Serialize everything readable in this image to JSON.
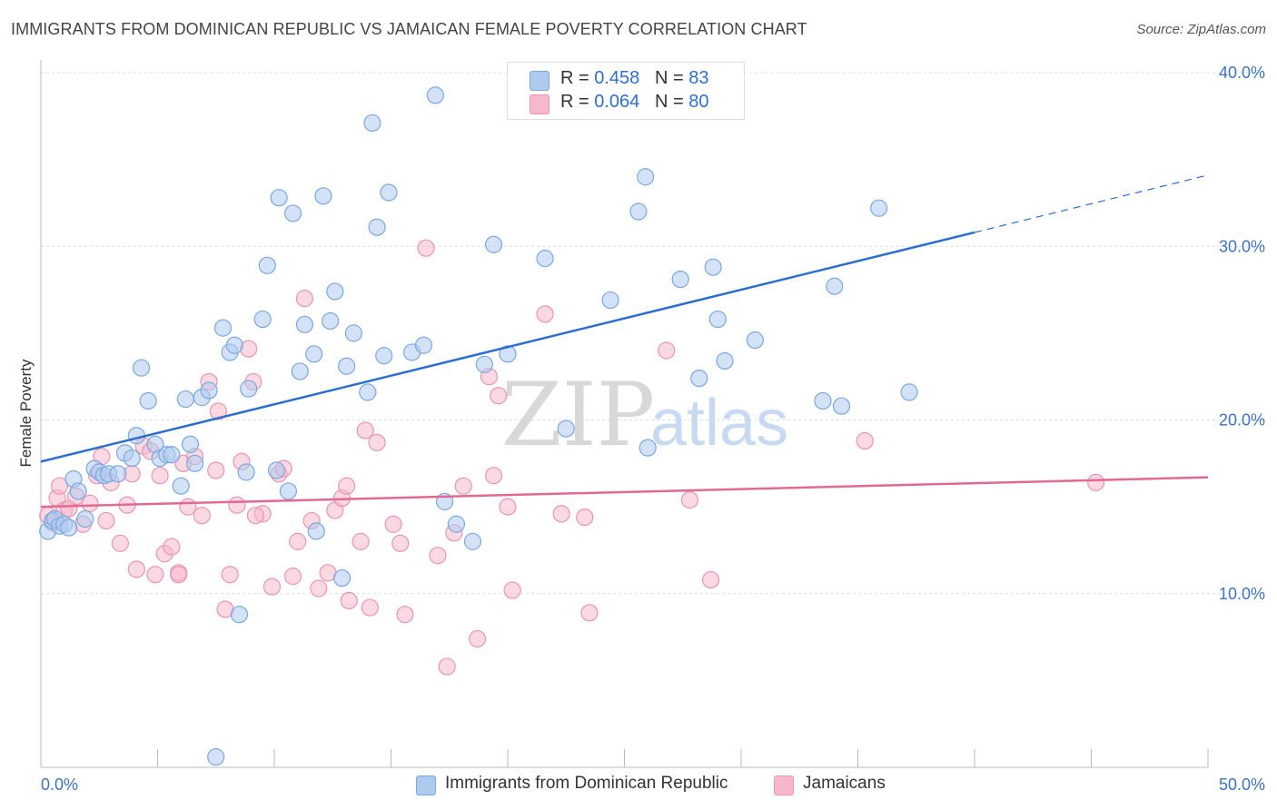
{
  "header": {
    "title": "IMMIGRANTS FROM DOMINICAN REPUBLIC VS JAMAICAN FEMALE POVERTY CORRELATION CHART",
    "source": "Source: ZipAtlas.com"
  },
  "watermark": {
    "zip": "ZIP",
    "atlas": "atlas"
  },
  "stats_legend": {
    "rows": [
      {
        "r_label": "R = ",
        "r_value": "0.458",
        "n_label": "N = ",
        "n_value": "83",
        "color": "#aecbef"
      },
      {
        "r_label": "R = ",
        "r_value": "0.064",
        "n_label": "N = ",
        "n_value": "80",
        "color": "#f6b9cc"
      }
    ]
  },
  "bottom_legend": [
    {
      "label": "Immigrants from Dominican Republic",
      "color": "#aecbef"
    },
    {
      "label": "Jamaicans",
      "color": "#f6b9cc"
    }
  ],
  "colors": {
    "blue_fill": "#aecbef",
    "blue_stroke": "#7aa8e0",
    "blue_line": "#2a6fd0",
    "pink_fill": "#f6b9cc",
    "pink_stroke": "#ea94b1",
    "pink_line": "#e46894",
    "grid": "#dddddd",
    "axis_text": "#3d72c4"
  },
  "chart_data": {
    "type": "scatter",
    "title": "IMMIGRANTS FROM DOMINICAN REPUBLIC VS JAMAICAN FEMALE POVERTY CORRELATION CHART",
    "xlabel": "",
    "ylabel": "Female Poverty",
    "xlim": [
      0,
      50
    ],
    "ylim": [
      0,
      40
    ],
    "x_tick_labels": [
      "0.0%",
      "50.0%"
    ],
    "y_ticks": [
      10,
      20,
      30,
      40
    ],
    "y_tick_labels": [
      "10.0%",
      "20.0%",
      "30.0%",
      "40.0%"
    ],
    "grid": true,
    "legend_position": "top-center",
    "series": [
      {
        "name": "Immigrants from Dominican Republic",
        "r": 0.458,
        "n": 83,
        "trend": {
          "x0": 0,
          "y0": 17.6,
          "x1": 40,
          "y1": 30.8,
          "dashed_to_x": 50,
          "dashed_to_y": 34.1
        },
        "points": [
          [
            0.3,
            13.6
          ],
          [
            0.5,
            14.2
          ],
          [
            0.6,
            14.3
          ],
          [
            0.8,
            13.9
          ],
          [
            1.0,
            14.0
          ],
          [
            1.2,
            13.8
          ],
          [
            1.4,
            16.6
          ],
          [
            1.6,
            15.9
          ],
          [
            1.9,
            14.3
          ],
          [
            2.3,
            17.2
          ],
          [
            2.5,
            17.0
          ],
          [
            2.7,
            16.8
          ],
          [
            2.9,
            16.9
          ],
          [
            3.3,
            16.9
          ],
          [
            3.6,
            18.1
          ],
          [
            3.9,
            17.8
          ],
          [
            4.1,
            19.1
          ],
          [
            4.3,
            23.0
          ],
          [
            4.6,
            21.1
          ],
          [
            4.9,
            18.6
          ],
          [
            5.1,
            17.8
          ],
          [
            5.4,
            18.0
          ],
          [
            5.6,
            18.0
          ],
          [
            6.0,
            16.2
          ],
          [
            6.2,
            21.2
          ],
          [
            6.4,
            18.6
          ],
          [
            6.6,
            17.5
          ],
          [
            6.9,
            21.3
          ],
          [
            7.2,
            21.7
          ],
          [
            7.5,
            0.6
          ],
          [
            7.8,
            25.3
          ],
          [
            8.1,
            23.9
          ],
          [
            8.3,
            24.3
          ],
          [
            8.8,
            17.0
          ],
          [
            8.9,
            21.8
          ],
          [
            8.5,
            8.8
          ],
          [
            9.5,
            25.8
          ],
          [
            9.7,
            28.9
          ],
          [
            10.1,
            17.1
          ],
          [
            10.2,
            32.8
          ],
          [
            10.6,
            15.9
          ],
          [
            10.8,
            31.9
          ],
          [
            11.1,
            22.8
          ],
          [
            11.3,
            25.5
          ],
          [
            11.7,
            23.8
          ],
          [
            11.8,
            13.6
          ],
          [
            12.1,
            32.9
          ],
          [
            12.4,
            25.7
          ],
          [
            12.6,
            27.4
          ],
          [
            12.9,
            10.9
          ],
          [
            13.1,
            23.1
          ],
          [
            13.4,
            25.0
          ],
          [
            14.0,
            21.6
          ],
          [
            14.2,
            37.1
          ],
          [
            14.4,
            31.1
          ],
          [
            14.7,
            23.7
          ],
          [
            14.9,
            33.1
          ],
          [
            15.9,
            23.9
          ],
          [
            16.4,
            24.3
          ],
          [
            16.9,
            38.7
          ],
          [
            17.3,
            15.3
          ],
          [
            17.8,
            14.0
          ],
          [
            18.5,
            13.0
          ],
          [
            19.0,
            23.2
          ],
          [
            19.4,
            30.1
          ],
          [
            20.0,
            23.8
          ],
          [
            21.6,
            29.3
          ],
          [
            22.5,
            19.5
          ],
          [
            24.4,
            26.9
          ],
          [
            25.6,
            32.0
          ],
          [
            25.9,
            34.0
          ],
          [
            26.0,
            18.4
          ],
          [
            27.4,
            28.1
          ],
          [
            28.2,
            22.4
          ],
          [
            28.8,
            28.8
          ],
          [
            29.0,
            25.8
          ],
          [
            29.3,
            23.4
          ],
          [
            30.6,
            24.6
          ],
          [
            33.5,
            21.1
          ],
          [
            34.0,
            27.7
          ],
          [
            34.3,
            20.8
          ],
          [
            35.9,
            32.2
          ],
          [
            37.2,
            21.6
          ]
        ]
      },
      {
        "name": "Jamaicans",
        "r": 0.064,
        "n": 80,
        "trend": {
          "x0": 0,
          "y0": 15.0,
          "x1": 50,
          "y1": 16.7
        },
        "points": [
          [
            0.3,
            14.5
          ],
          [
            0.5,
            14.1
          ],
          [
            0.7,
            15.5
          ],
          [
            0.8,
            16.2
          ],
          [
            1.0,
            14.8
          ],
          [
            1.2,
            14.9
          ],
          [
            1.5,
            15.6
          ],
          [
            1.8,
            14.0
          ],
          [
            2.1,
            15.2
          ],
          [
            2.4,
            16.8
          ],
          [
            2.6,
            17.9
          ],
          [
            2.8,
            14.2
          ],
          [
            3.0,
            16.4
          ],
          [
            3.4,
            12.9
          ],
          [
            3.7,
            15.1
          ],
          [
            3.9,
            16.9
          ],
          [
            4.1,
            11.4
          ],
          [
            4.4,
            18.5
          ],
          [
            4.7,
            18.2
          ],
          [
            4.9,
            11.1
          ],
          [
            5.1,
            16.8
          ],
          [
            5.3,
            12.3
          ],
          [
            5.6,
            12.7
          ],
          [
            5.9,
            11.2
          ],
          [
            6.1,
            17.5
          ],
          [
            6.3,
            15.0
          ],
          [
            6.6,
            17.9
          ],
          [
            6.9,
            14.5
          ],
          [
            7.2,
            22.2
          ],
          [
            7.5,
            17.1
          ],
          [
            7.6,
            20.5
          ],
          [
            7.9,
            9.1
          ],
          [
            8.1,
            11.1
          ],
          [
            8.4,
            15.1
          ],
          [
            8.6,
            17.6
          ],
          [
            8.9,
            24.1
          ],
          [
            9.1,
            22.2
          ],
          [
            9.5,
            14.6
          ],
          [
            9.9,
            10.4
          ],
          [
            10.2,
            16.9
          ],
          [
            10.4,
            17.2
          ],
          [
            10.8,
            11.0
          ],
          [
            11.0,
            13.0
          ],
          [
            11.3,
            27.0
          ],
          [
            11.6,
            14.2
          ],
          [
            11.9,
            10.3
          ],
          [
            12.3,
            11.2
          ],
          [
            12.6,
            14.8
          ],
          [
            12.9,
            15.5
          ],
          [
            13.2,
            9.6
          ],
          [
            13.7,
            13.0
          ],
          [
            13.9,
            19.4
          ],
          [
            14.1,
            9.2
          ],
          [
            14.4,
            18.7
          ],
          [
            15.1,
            14.0
          ],
          [
            15.4,
            12.9
          ],
          [
            15.6,
            8.8
          ],
          [
            16.5,
            29.9
          ],
          [
            17.0,
            12.2
          ],
          [
            17.4,
            5.8
          ],
          [
            17.7,
            13.5
          ],
          [
            18.1,
            16.2
          ],
          [
            18.7,
            7.4
          ],
          [
            19.2,
            22.5
          ],
          [
            19.4,
            16.8
          ],
          [
            19.6,
            21.4
          ],
          [
            20.0,
            15.0
          ],
          [
            20.2,
            10.2
          ],
          [
            21.6,
            26.1
          ],
          [
            22.3,
            14.6
          ],
          [
            23.3,
            14.4
          ],
          [
            23.5,
            8.9
          ],
          [
            26.8,
            24.0
          ],
          [
            27.8,
            15.4
          ],
          [
            28.7,
            10.8
          ],
          [
            35.3,
            18.8
          ],
          [
            45.2,
            16.4
          ],
          [
            5.9,
            11.1
          ],
          [
            9.2,
            14.5
          ],
          [
            13.1,
            16.2
          ]
        ]
      }
    ]
  }
}
